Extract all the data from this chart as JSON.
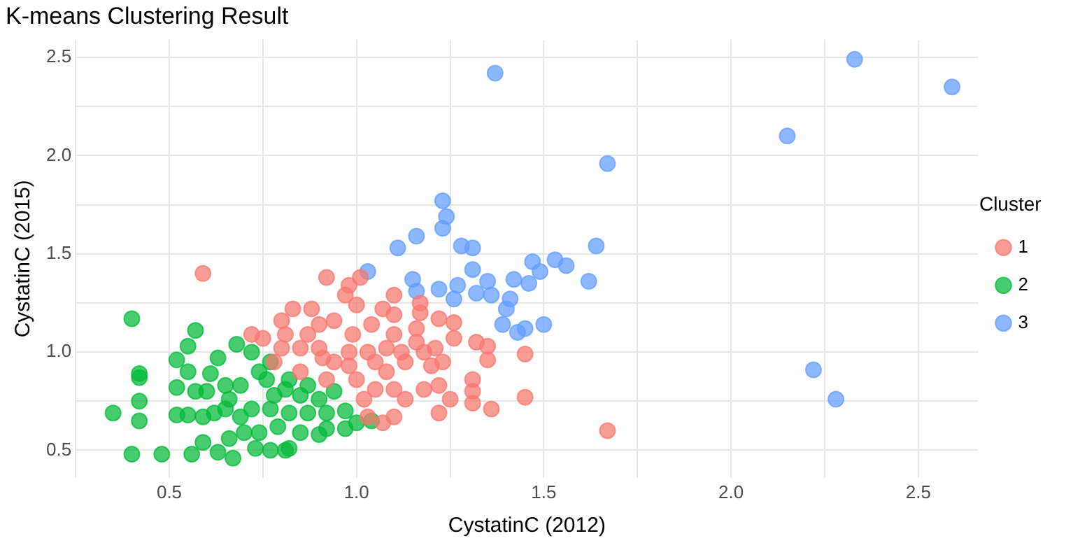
{
  "chart_data": {
    "type": "scatter",
    "title": "K-means Clustering Result",
    "xlabel": "CystatinC (2012)",
    "ylabel": "CystatinC (2015)",
    "legend_title": "Cluster",
    "legend": "right",
    "grid": true,
    "marker": "circle",
    "xlim": [
      0.25,
      2.66
    ],
    "ylim": [
      0.36,
      2.59
    ],
    "xticks": [
      {
        "value": 0.25,
        "label": null
      },
      0.5,
      {
        "value": 0.75,
        "label": null
      },
      "1.0",
      {
        "value": 1.25,
        "label": null
      },
      1.5,
      {
        "value": 1.75,
        "label": null
      },
      "2.0",
      {
        "value": 2.25,
        "label": null
      },
      2.5
    ],
    "yticks": [
      {
        "value": 0.75,
        "label": null
      },
      0.5,
      "1.0",
      {
        "value": 1.25,
        "label": null
      },
      1.5,
      {
        "value": 1.75,
        "label": null
      },
      "2.0",
      {
        "value": 2.25,
        "label": null
      },
      2.5
    ],
    "series": [
      {
        "name": "1",
        "color": "#f8766d",
        "x": [
          1.67,
          1.45,
          1.45,
          0.59,
          0.92,
          1.01,
          0.98,
          1.36,
          1.22,
          1.25,
          1.31,
          1.31,
          1.31,
          1.35,
          1.35,
          1.32,
          1.26,
          1.22,
          1.26,
          1.17,
          1.17,
          1.1,
          1.07,
          1.0,
          0.97,
          0.88,
          0.83,
          0.8,
          0.72,
          0.75,
          0.81,
          0.9,
          0.94,
          1.04,
          1.1,
          1.16,
          1.21,
          1.23,
          1.22,
          1.18,
          1.13,
          1.1,
          1.07,
          1.03,
          0.98,
          0.91,
          0.85,
          0.8,
          0.85,
          0.92,
          1.0,
          1.08,
          1.13,
          1.18,
          1.08,
          1.03,
          0.98,
          1.1,
          1.16,
          1.05,
          1.1,
          1.02,
          0.9,
          0.94,
          0.78,
          0.87,
          0.99,
          1.05,
          1.12,
          1.2
        ],
        "values": [
          0.6,
          0.99,
          0.77,
          1.4,
          1.38,
          1.38,
          1.34,
          0.71,
          0.69,
          0.76,
          0.86,
          0.8,
          0.74,
          1.03,
          0.96,
          1.05,
          1.07,
          1.17,
          1.15,
          1.25,
          1.2,
          1.29,
          1.22,
          1.24,
          1.29,
          1.22,
          1.22,
          1.16,
          1.09,
          1.07,
          1.09,
          1.14,
          1.16,
          1.14,
          1.19,
          1.12,
          1.02,
          0.95,
          0.83,
          0.81,
          0.76,
          0.67,
          0.64,
          0.67,
          1.0,
          0.97,
          1.02,
          1.02,
          0.9,
          0.86,
          0.86,
          0.9,
          0.95,
          1.0,
          1.02,
          1.0,
          0.93,
          1.09,
          1.05,
          0.81,
          0.81,
          0.76,
          1.02,
          0.95,
          0.95,
          1.09,
          1.09,
          0.95,
          1.0,
          0.93
        ]
      },
      {
        "name": "2",
        "color": "#00ba38",
        "x": [
          0.4,
          0.42,
          0.42,
          0.42,
          0.42,
          0.35,
          0.4,
          0.48,
          0.56,
          0.59,
          0.63,
          0.67,
          0.57,
          0.55,
          0.52,
          0.55,
          0.52,
          0.52,
          0.57,
          0.6,
          0.55,
          0.59,
          0.62,
          0.63,
          0.68,
          0.72,
          0.61,
          0.65,
          0.66,
          0.69,
          0.66,
          0.73,
          0.77,
          0.81,
          0.82,
          0.74,
          0.79,
          0.85,
          0.9,
          0.92,
          0.97,
          1.0,
          1.04,
          0.97,
          0.94,
          0.9,
          0.85,
          0.78,
          0.74,
          0.77,
          0.82,
          0.87,
          0.69,
          0.72,
          0.77,
          0.82,
          0.87,
          0.92,
          0.81,
          0.76,
          0.65,
          0.7
        ],
        "values": [
          1.17,
          0.89,
          0.87,
          0.75,
          0.65,
          0.69,
          0.48,
          0.48,
          0.48,
          0.54,
          0.49,
          0.46,
          1.11,
          1.03,
          0.96,
          0.9,
          0.82,
          0.68,
          0.8,
          0.8,
          0.68,
          0.67,
          0.69,
          0.97,
          1.04,
          1.0,
          0.89,
          0.83,
          0.76,
          0.67,
          0.56,
          0.51,
          0.5,
          0.5,
          0.51,
          0.59,
          0.62,
          0.59,
          0.58,
          0.61,
          0.61,
          0.64,
          0.65,
          0.7,
          0.8,
          0.76,
          0.78,
          0.78,
          0.9,
          0.95,
          0.86,
          0.83,
          0.83,
          0.71,
          0.71,
          0.69,
          0.69,
          0.69,
          0.81,
          0.86,
          0.71,
          0.59
        ]
      },
      {
        "name": "3",
        "color": "#619cff",
        "x": [
          2.33,
          2.59,
          2.15,
          1.67,
          1.64,
          1.62,
          1.53,
          1.56,
          2.22,
          2.28,
          1.37,
          1.23,
          1.24,
          1.23,
          1.11,
          1.16,
          1.28,
          1.31,
          1.31,
          1.35,
          1.42,
          1.46,
          1.47,
          1.49,
          1.15,
          1.16,
          1.03,
          1.22,
          1.26,
          1.32,
          1.36,
          1.41,
          1.4,
          1.39,
          1.43,
          1.45,
          1.5,
          1.27
        ],
        "values": [
          2.49,
          2.35,
          2.1,
          1.96,
          1.54,
          1.36,
          1.47,
          1.44,
          0.91,
          0.76,
          2.42,
          1.77,
          1.69,
          1.63,
          1.53,
          1.59,
          1.54,
          1.53,
          1.42,
          1.36,
          1.37,
          1.35,
          1.46,
          1.41,
          1.37,
          1.31,
          1.41,
          1.32,
          1.27,
          1.3,
          1.29,
          1.27,
          1.22,
          1.14,
          1.1,
          1.12,
          1.14,
          1.34
        ]
      }
    ]
  }
}
